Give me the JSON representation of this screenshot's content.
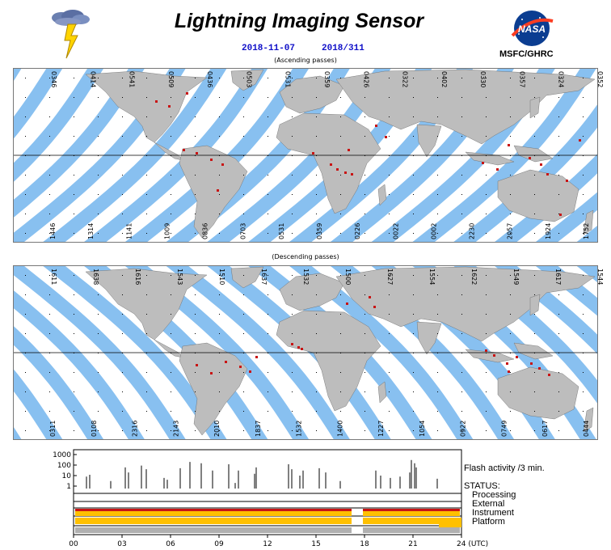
{
  "header": {
    "title": "Lightning Imaging Sensor",
    "date": "2018-11-07",
    "doy": "2018/311",
    "organization": "MSFC/GHRC"
  },
  "icons": {
    "left": "lightning-cloud-icon",
    "right": "nasa-logo-icon"
  },
  "colors": {
    "swath": "#88c0f0",
    "land": "#bdbdbd",
    "sunlit_land": "#fdd98a",
    "flash": "#c81414",
    "status_ok": "#ffc000"
  },
  "ascending": {
    "caption": "(Ascending passes)",
    "top_labels": [
      "0346",
      "0414",
      "0541",
      "0509",
      "0436",
      "0503",
      "0531",
      "0359",
      "0426",
      "0322",
      "0402",
      "0330",
      "0357",
      "0324",
      "0352"
    ],
    "bottom_labels": [
      "1446",
      "1314",
      "1141",
      "1009",
      "0836",
      "0703",
      "0531",
      "0359",
      "0226",
      "0022",
      "0002",
      "2230",
      "2057",
      "1924",
      "1752"
    ]
  },
  "descending": {
    "caption": "(Descending passes)",
    "top_labels": [
      "1611",
      "1638",
      "1616",
      "1543",
      "1510",
      "1637",
      "1532",
      "1500",
      "1627",
      "1554",
      "1622",
      "1549",
      "1617",
      "1544"
    ],
    "bottom_labels": [
      "0311",
      "0108",
      "2316",
      "2143",
      "2010",
      "1837",
      "1532",
      "1400",
      "1227",
      "1054",
      "0922",
      "0749",
      "0617",
      "0444"
    ]
  },
  "timeseries": {
    "y_ticks": [
      "1000",
      "100",
      "10",
      "1"
    ],
    "x_ticks": [
      "00",
      "03",
      "06",
      "09",
      "12",
      "15",
      "18",
      "21",
      "24 (UTC)"
    ],
    "flash_label": "Flash activity /3 min.",
    "status_label": "STATUS:",
    "status_rows": [
      "Processing",
      "External",
      "Instrument",
      "Platform"
    ],
    "flash_spike_hours": [
      0.8,
      1.0,
      2.3,
      3.2,
      3.4,
      4.2,
      4.5,
      5.6,
      5.8,
      6.6,
      7.2,
      7.9,
      8.6,
      9.6,
      10.0,
      10.2,
      11.2,
      11.3,
      13.3,
      13.5,
      14.0,
      14.2,
      15.2,
      15.6,
      16.5,
      18.7,
      19.0,
      19.6,
      20.2,
      20.8,
      20.9,
      21.1,
      21.2,
      22.5
    ],
    "flash_spike_values": [
      8,
      12,
      3,
      60,
      20,
      90,
      40,
      6,
      4,
      50,
      200,
      150,
      30,
      120,
      2,
      30,
      15,
      60,
      120,
      40,
      10,
      30,
      50,
      20,
      3,
      30,
      10,
      6,
      8,
      20,
      300,
      150,
      60,
      5
    ]
  }
}
